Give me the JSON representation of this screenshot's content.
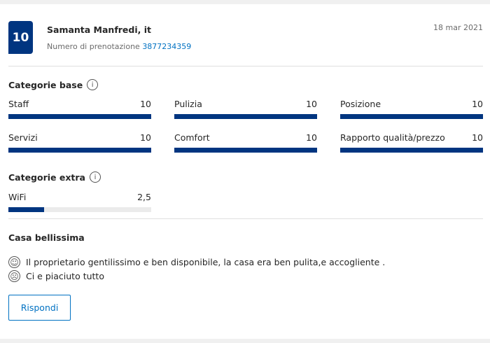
{
  "review": {
    "score": "10",
    "reviewer": "Samanta Manfredi, it",
    "booking_label": "Numero di prenotazione",
    "booking_number": "3877234359",
    "date": "18 mar 2021"
  },
  "base": {
    "title": "Categorie base",
    "items": [
      {
        "label": "Staff",
        "value": "10",
        "fraction": 1
      },
      {
        "label": "Pulizia",
        "value": "10",
        "fraction": 1
      },
      {
        "label": "Posizione",
        "value": "10",
        "fraction": 1
      },
      {
        "label": "Servizi",
        "value": "10",
        "fraction": 1
      },
      {
        "label": "Comfort",
        "value": "10",
        "fraction": 1
      },
      {
        "label": "Rapporto qualità/prezzo",
        "value": "10",
        "fraction": 1
      }
    ]
  },
  "extra": {
    "title": "Categorie extra",
    "items": [
      {
        "label": "WiFi",
        "value": "2,5",
        "fraction": 0.25
      }
    ]
  },
  "text": {
    "title": "Casa bellissima",
    "positive": "Il proprietario gentilissimo e ben disponibile, la casa era ben pulita,e accogliente .",
    "negative": "Ci e piaciuto tutto"
  },
  "reply_label": "Rispondi",
  "colors": {
    "brand": "#003580",
    "link": "#0071c2"
  }
}
